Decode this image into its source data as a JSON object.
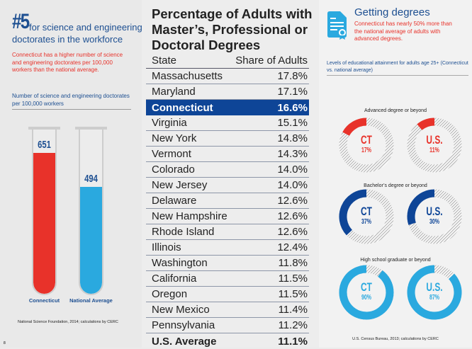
{
  "left": {
    "rank": "#5",
    "rank_text": "for science and engineering doctorates in the workforce",
    "description": "Connecticut has a higher number of science and engineering doctorates per 100,000 workers than the national average.",
    "chart_label": "Number of science and engineering doctorates per 100,000 workers",
    "source": "National Science Foundation, 2014; calculations by CERC",
    "page": "8"
  },
  "chart_data": [
    {
      "type": "bar",
      "categories": [
        "Connecticut",
        "National Average"
      ],
      "values": [
        651,
        494
      ],
      "colors": [
        "#e8322a",
        "#2aa9df"
      ],
      "ylabel": "Number of science and engineering doctorates per 100,000 workers"
    },
    {
      "type": "table",
      "title": "Percentage of Adults with Master’s, Professional or Doctoral Degrees",
      "columns": [
        "State",
        "Share of Adults"
      ],
      "rows": [
        [
          "Massachusetts",
          "17.8%"
        ],
        [
          "Maryland",
          "17.1%"
        ],
        [
          "Connecticut",
          "16.6%"
        ],
        [
          "Virginia",
          "15.1%"
        ],
        [
          "New York",
          "14.8%"
        ],
        [
          "Vermont",
          "14.3%"
        ],
        [
          "Colorado",
          "14.0%"
        ],
        [
          "New Jersey",
          "14.0%"
        ],
        [
          "Delaware",
          "12.6%"
        ],
        [
          "New Hampshire",
          "12.6%"
        ],
        [
          "Rhode Island",
          "12.6%"
        ],
        [
          "Illinois",
          "12.4%"
        ],
        [
          "Washington",
          "11.8%"
        ],
        [
          "California",
          "11.5%"
        ],
        [
          "Oregon",
          "11.5%"
        ],
        [
          "New Mexico",
          "11.4%"
        ],
        [
          "Pennsylvania",
          "11.2%"
        ],
        [
          "U.S. Average",
          "11.1%"
        ]
      ],
      "highlight_row": "Connecticut"
    },
    {
      "type": "pie",
      "groups": [
        {
          "label": "Advanced degree or beyond",
          "color": "#e8322a",
          "items": [
            {
              "name": "CT",
              "value": 17,
              "text": "17%"
            },
            {
              "name": "U.S.",
              "value": 11,
              "text": "11%"
            }
          ]
        },
        {
          "label": "Bachelor’s degree or beyond",
          "color": "#0e4597",
          "items": [
            {
              "name": "CT",
              "value": 37,
              "text": "37%"
            },
            {
              "name": "U.S.",
              "value": 30,
              "text": "30%"
            }
          ]
        },
        {
          "label": "High school graduate or beyond",
          "color": "#2aa9df",
          "items": [
            {
              "name": "CT",
              "value": 90,
              "text": "90%"
            },
            {
              "name": "U.S.",
              "value": 87,
              "text": "87%"
            }
          ]
        }
      ]
    }
  ],
  "right": {
    "icon": "certificate-icon",
    "title": "Getting degrees",
    "description": "Connecticut has nearly 50% more than the national average of adults with advanced degrees.",
    "chart_label": "Levels of educational attainment for adults age 25+ (Connecticut vs. national average)",
    "source": "U.S. Census Bureau, 2013; calculations by CERC"
  }
}
